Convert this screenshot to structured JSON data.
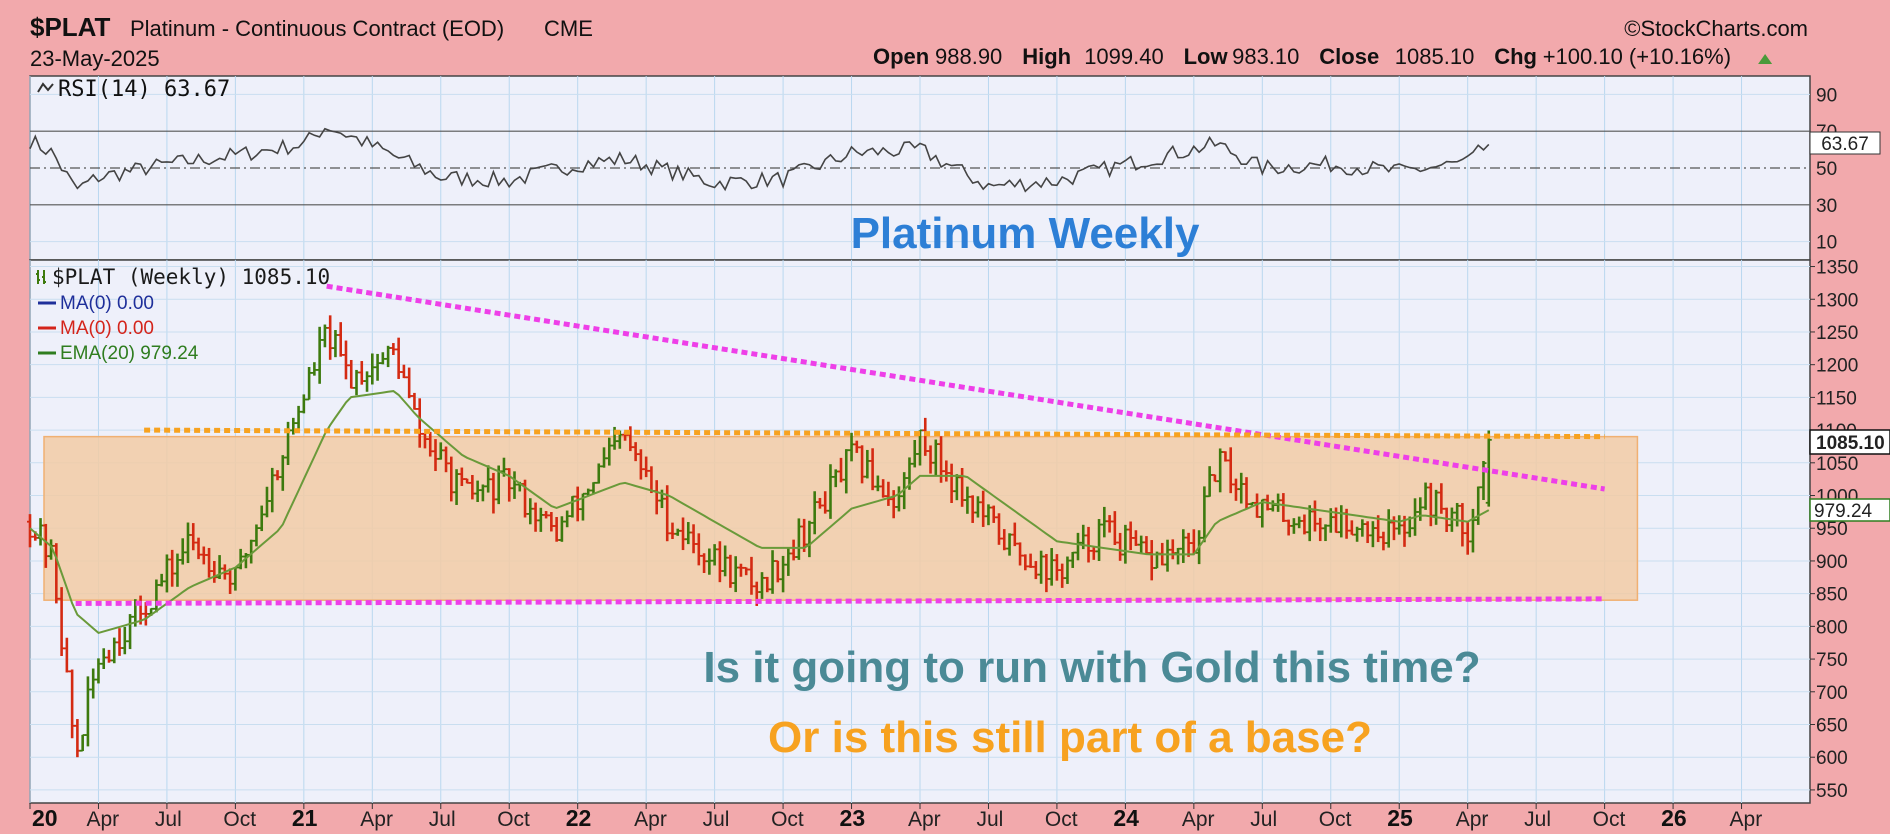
{
  "header": {
    "symbol": "$PLAT",
    "description": "Platinum - Continuous Contract (EOD)",
    "exchange": "CME",
    "date": "23-May-2025",
    "brand": "©StockCharts.com",
    "ohlc": [
      {
        "label": "Open",
        "value": "988.90"
      },
      {
        "label": "High",
        "value": "1099.40"
      },
      {
        "label": "Low",
        "value": "983.10"
      },
      {
        "label": "Close",
        "value": "1085.10"
      },
      {
        "label": "Chg",
        "value": "+100.10 (+10.16%)"
      }
    ]
  },
  "rsi_panel": {
    "label": "RSI(14) 63.67",
    "current_value": "63.67",
    "ticks": [
      "90",
      "70",
      "50",
      "30",
      "10"
    ]
  },
  "price_panel": {
    "legend": [
      {
        "text": "$PLAT (Weekly) 1085.10",
        "color": "#1a1a1a"
      },
      {
        "text": "MA(0) 0.00",
        "color": "#1f2f9a"
      },
      {
        "text": "MA(0) 0.00",
        "color": "#d4241b"
      },
      {
        "text": "EMA(20) 979.24",
        "color": "#2f7d1f"
      }
    ],
    "current_price_label": "1085.10",
    "ema_value_label": "979.24"
  },
  "annotations": {
    "title": "Platinum Weekly",
    "question1": "Is it going to run with Gold this time?",
    "question2": "Or is this still part of a base?"
  },
  "colors": {
    "background": "#f2a9ac",
    "panel": "#eef0fa",
    "up_bar": "#3d7a0e",
    "down_bar": "#d42a12",
    "ema": "#6a9a3a",
    "magenta_trendline": "#ee3fe8",
    "orange_line": "#f7a220",
    "range_box": "#f2cba4"
  },
  "chart_data": [
    {
      "type": "line",
      "name": "RSI",
      "title": "RSI(14) 63.67",
      "ylim": [
        0,
        100
      ],
      "yticks": [
        90,
        70,
        50,
        30,
        10
      ],
      "reference_lines": [
        70,
        50,
        30
      ],
      "x": [
        "2020-01",
        "2020-02",
        "2020-03",
        "2020-04",
        "2020-07",
        "2020-10",
        "2021-01",
        "2021-02",
        "2021-04",
        "2021-07",
        "2021-10",
        "2022-01",
        "2022-03",
        "2022-07",
        "2022-10",
        "2023-01",
        "2023-04",
        "2023-07",
        "2023-10",
        "2024-01",
        "2024-05",
        "2024-07",
        "2024-10",
        "2025-01",
        "2025-04",
        "2025-05"
      ],
      "values": [
        65,
        58,
        38,
        45,
        52,
        57,
        63,
        73,
        62,
        45,
        43,
        52,
        55,
        42,
        44,
        58,
        60,
        40,
        43,
        52,
        63,
        50,
        52,
        48,
        53,
        63.67
      ]
    },
    {
      "type": "bar",
      "name": "$PLAT (Weekly)",
      "title": "$PLAT (Weekly) 1085.10",
      "ylim": [
        530,
        1360
      ],
      "yticks": [
        1350,
        1300,
        1250,
        1200,
        1150,
        1100,
        1050,
        1000,
        950,
        900,
        850,
        800,
        750,
        700,
        650,
        600,
        550
      ],
      "xticks": [
        "20",
        "Apr",
        "Jul",
        "Oct",
        "21",
        "Apr",
        "Jul",
        "Oct",
        "22",
        "Apr",
        "Jul",
        "Oct",
        "23",
        "Apr",
        "Jul",
        "Oct",
        "24",
        "Apr",
        "Jul",
        "Oct",
        "25",
        "Apr",
        "Jul",
        "Oct",
        "26",
        "Apr"
      ],
      "x": [
        "2020-01",
        "2020-02",
        "2020-03",
        "2020-04",
        "2020-06",
        "2020-08",
        "2020-10",
        "2020-12",
        "2021-02",
        "2021-03",
        "2021-05",
        "2021-06",
        "2021-08",
        "2021-10",
        "2021-12",
        "2022-03",
        "2022-05",
        "2022-07",
        "2022-09",
        "2022-11",
        "2023-01",
        "2023-03",
        "2023-04",
        "2023-06",
        "2023-08",
        "2023-10",
        "2023-12",
        "2024-02",
        "2024-04",
        "2024-05",
        "2024-07",
        "2024-09",
        "2024-11",
        "2025-01",
        "2025-02",
        "2025-04",
        "2025-05"
      ],
      "values": [
        960,
        900,
        600,
        750,
        830,
        930,
        870,
        1060,
        1250,
        1180,
        1220,
        1100,
        1000,
        1020,
        940,
        1090,
        960,
        900,
        860,
        950,
        1060,
        990,
        1090,
        1000,
        920,
        880,
        950,
        900,
        920,
        1050,
        980,
        960,
        960,
        940,
        1000,
        950,
        1085.1
      ],
      "ema20": [
        950,
        920,
        820,
        790,
        810,
        860,
        890,
        950,
        1100,
        1150,
        1160,
        1120,
        1060,
        1030,
        980,
        1020,
        1000,
        960,
        920,
        920,
        980,
        1000,
        1030,
        1030,
        980,
        930,
        920,
        910,
        910,
        960,
        990,
        980,
        970,
        960,
        970,
        960,
        979.24
      ],
      "trendlines": [
        {
          "x": [
            "2021-02",
            "2025-10"
          ],
          "y": [
            1320,
            1010
          ],
          "style": "magenta-dotted"
        },
        {
          "x": [
            "2020-03",
            "2025-10"
          ],
          "y": [
            835,
            842
          ],
          "style": "magenta-dotted"
        },
        {
          "x": [
            "2020-06",
            "2025-10"
          ],
          "y": [
            1100,
            1090
          ],
          "style": "orange-dotted"
        }
      ],
      "range_box": {
        "x": [
          "2020-01",
          "2025-11"
        ],
        "y": [
          840,
          1090
        ]
      }
    }
  ]
}
